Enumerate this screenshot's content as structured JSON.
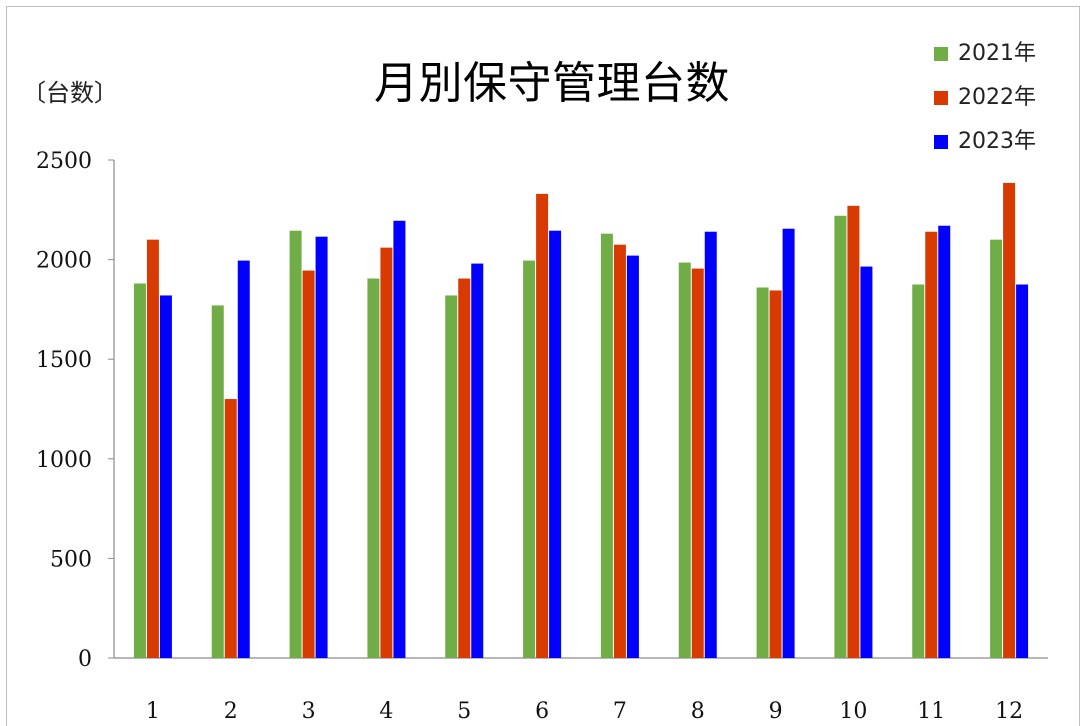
{
  "chart_data": {
    "type": "bar",
    "title": "月別保守管理台数",
    "ylabel": "〔台数〕",
    "xlabel": "",
    "categories": [
      "1",
      "2",
      "3",
      "4",
      "5",
      "6",
      "7",
      "8",
      "9",
      "10",
      "11",
      "12"
    ],
    "series": [
      {
        "name": "2021年",
        "color": "#70ad47",
        "values": [
          1880,
          1770,
          2145,
          1905,
          1820,
          1995,
          2130,
          1985,
          1860,
          2220,
          1875,
          2100
        ]
      },
      {
        "name": "2022年",
        "color": "#d83b01",
        "values": [
          2100,
          1300,
          1945,
          2060,
          1905,
          2330,
          2075,
          1955,
          1845,
          2270,
          2140,
          2385
        ]
      },
      {
        "name": "2023年",
        "color": "#0000ff",
        "values": [
          1820,
          1995,
          2115,
          2195,
          1980,
          2145,
          2020,
          2140,
          2155,
          1965,
          2170,
          1875
        ]
      }
    ],
    "ylim": [
      0,
      2500
    ],
    "yticks": [
      0,
      500,
      1000,
      1500,
      2000,
      2500
    ],
    "grid": false,
    "legend_position": "top-right"
  }
}
